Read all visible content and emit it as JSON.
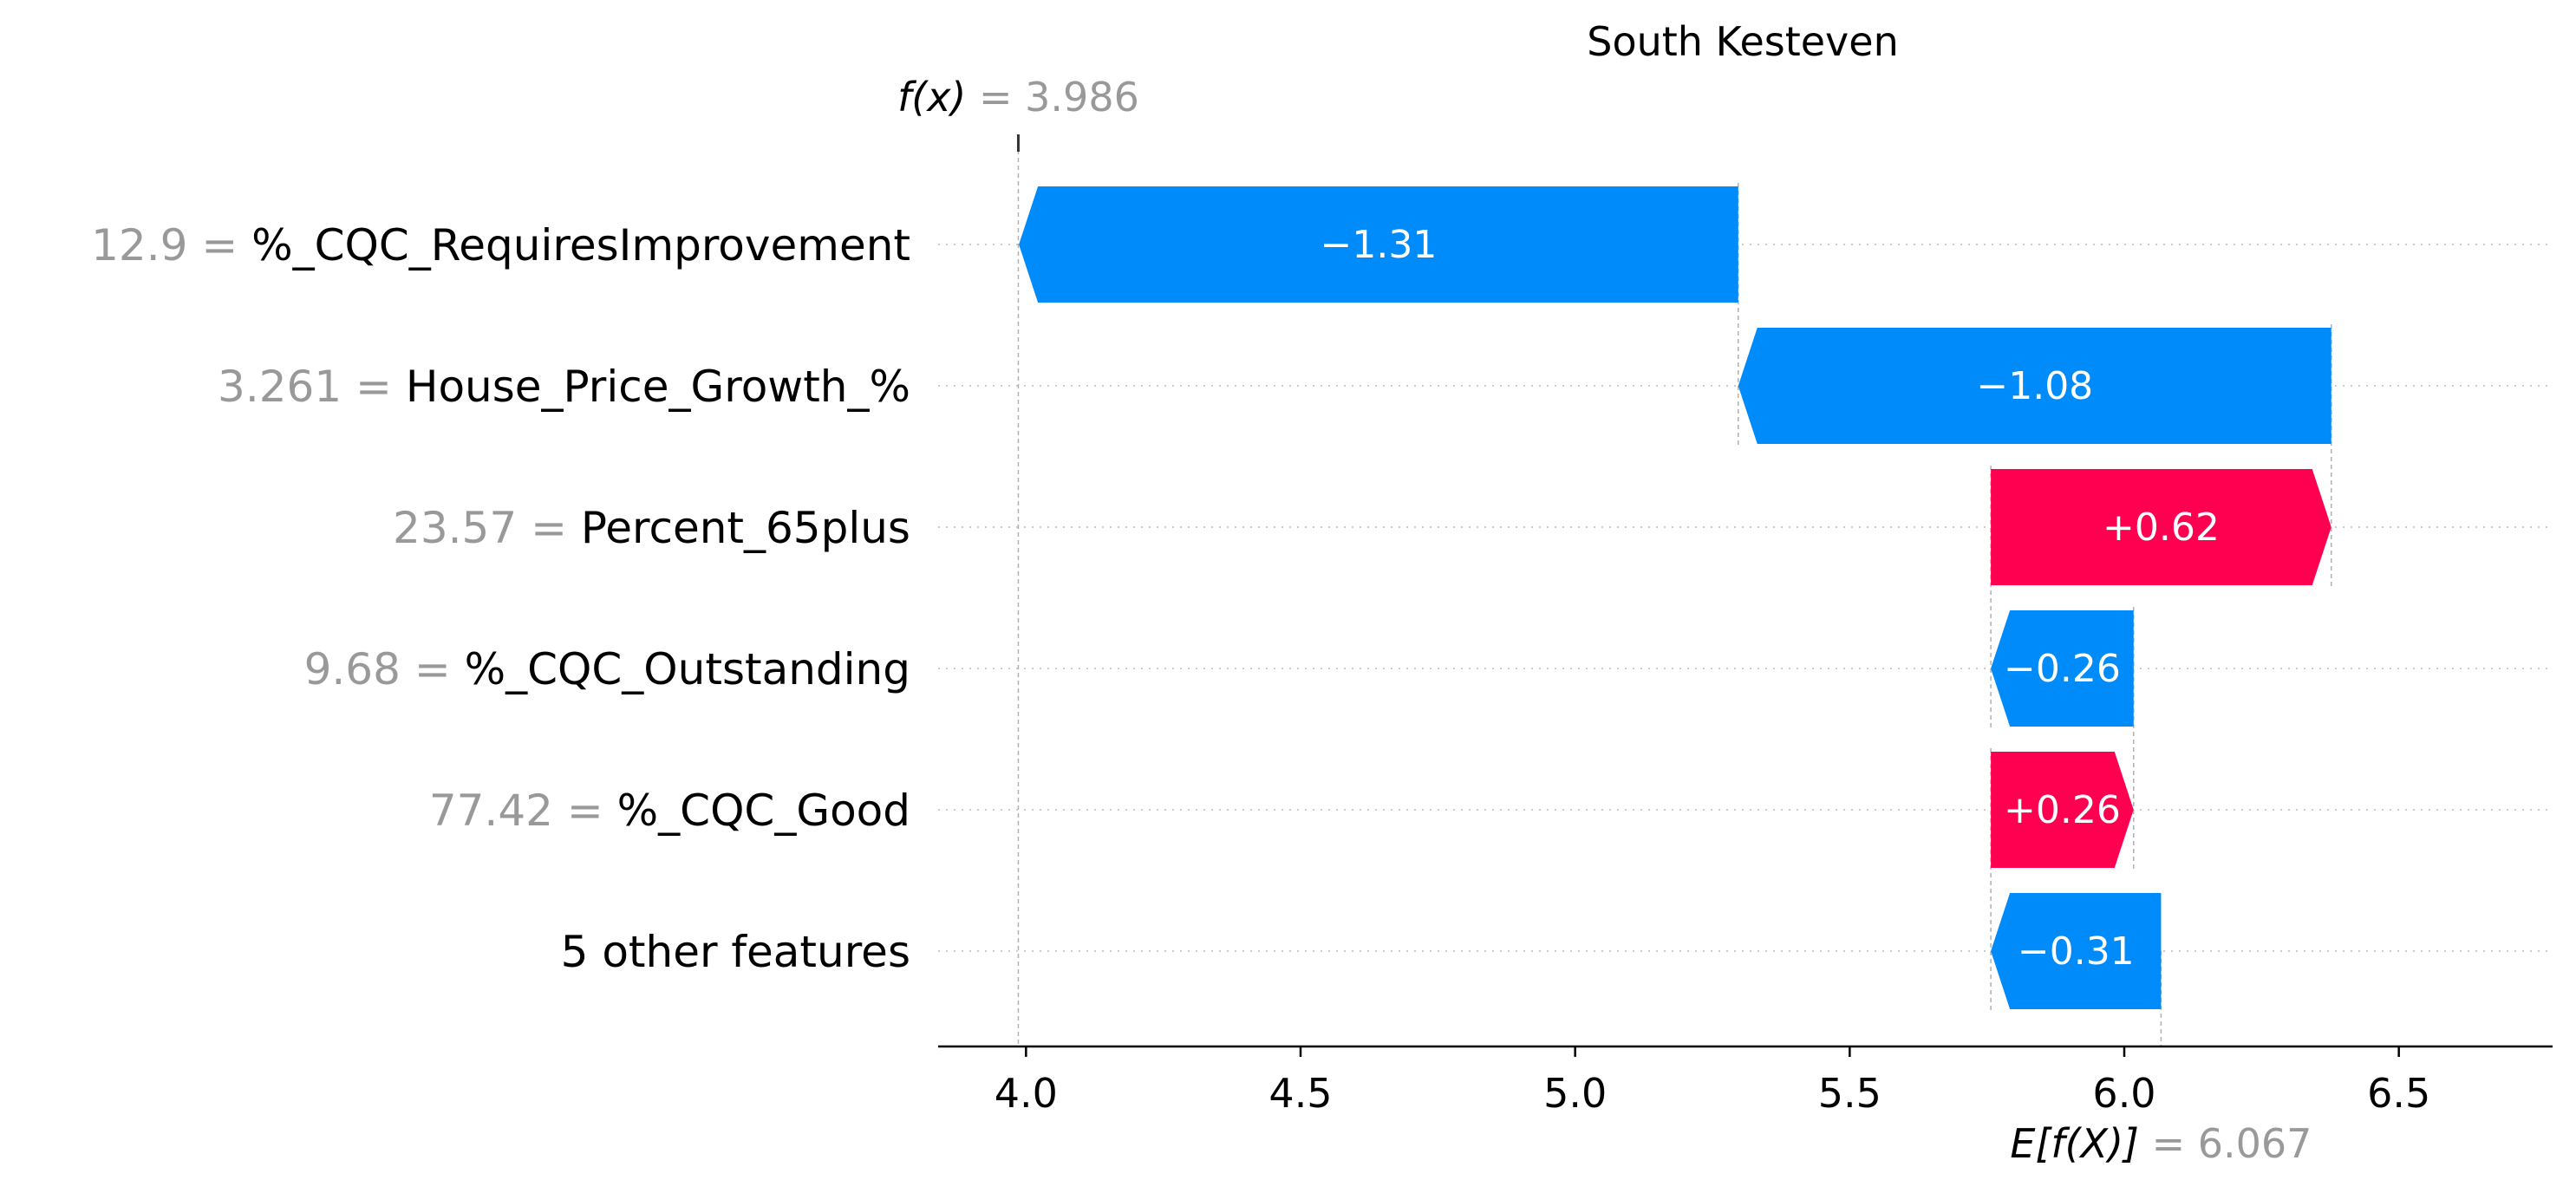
{
  "chart_data": {
    "type": "waterfall",
    "title": "South Kesteven",
    "base_value": 6.067,
    "base_label": "E[f(X)]",
    "base_value_text": "= 6.067",
    "output_value": 3.986,
    "output_label": "f(x)",
    "output_value_text": "= 3.986",
    "xlim": [
      3.84,
      6.78
    ],
    "xticks": [
      4.0,
      4.5,
      5.0,
      5.5,
      6.0,
      6.5
    ],
    "xtick_labels": [
      "4.0",
      "4.5",
      "5.0",
      "5.5",
      "6.0",
      "6.5"
    ],
    "features": [
      {
        "name": "%_CQC_RequiresImprovement",
        "value": "12.9",
        "contribution": -1.31,
        "label": "−1.31"
      },
      {
        "name": "House_Price_Growth_%",
        "value": "3.261",
        "contribution": -1.08,
        "label": "−1.08"
      },
      {
        "name": "Percent_65plus",
        "value": "23.57",
        "contribution": 0.62,
        "label": "+0.62"
      },
      {
        "name": "%_CQC_Outstanding",
        "value": "9.68",
        "contribution": -0.26,
        "label": "−0.26"
      },
      {
        "name": "%_CQC_Good",
        "value": "77.42",
        "contribution": 0.26,
        "label": "+0.26"
      },
      {
        "name": "5 other features",
        "value": "",
        "contribution": -0.31,
        "label": "−0.31"
      }
    ],
    "colors": {
      "positive": "#ff0051",
      "negative": "#008bfb",
      "grid": "#cccccc",
      "value_text": "#999999"
    }
  }
}
